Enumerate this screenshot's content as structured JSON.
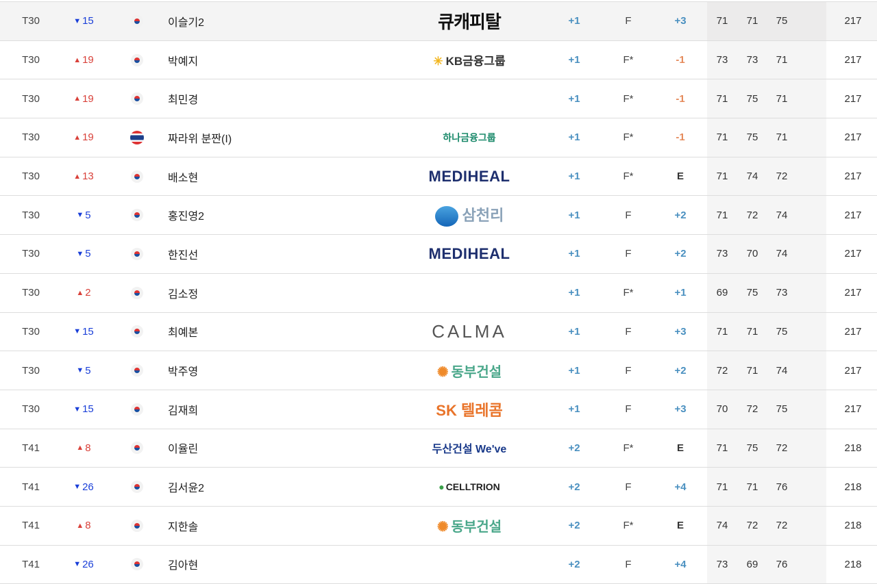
{
  "colors": {
    "up": "#d9413a",
    "down": "#1a3fd8",
    "over_par": "#4a90c0",
    "under_par": "#e58a5a"
  },
  "rows": [
    {
      "rank": "T30",
      "dir": "down",
      "move": "15",
      "flag": "korea-flag-icon",
      "name": "이슬기2",
      "sponsor": "큐캐피탈",
      "sponsor_key": "qc",
      "today": "+1",
      "thru": "F",
      "total": "+3",
      "r1": "71",
      "r2": "71",
      "r3": "75",
      "strokes": "217",
      "highlight": true
    },
    {
      "rank": "T30",
      "dir": "up",
      "move": "19",
      "flag": "korea-flag-icon",
      "name": "박예지",
      "sponsor": "KB금융그룹",
      "sponsor_key": "kb",
      "today": "+1",
      "thru": "F*",
      "total": "-1",
      "r1": "73",
      "r2": "73",
      "r3": "71",
      "strokes": "217"
    },
    {
      "rank": "T30",
      "dir": "up",
      "move": "19",
      "flag": "korea-flag-icon",
      "name": "최민경",
      "sponsor": "",
      "sponsor_key": "",
      "today": "+1",
      "thru": "F*",
      "total": "-1",
      "r1": "71",
      "r2": "75",
      "r3": "71",
      "strokes": "217"
    },
    {
      "rank": "T30",
      "dir": "up",
      "move": "19",
      "flag": "thailand-flag-icon",
      "name": "짜라위 분짠(I)",
      "sponsor": "하나금융그룹",
      "sponsor_key": "hana",
      "today": "+1",
      "thru": "F*",
      "total": "-1",
      "r1": "71",
      "r2": "75",
      "r3": "71",
      "strokes": "217"
    },
    {
      "rank": "T30",
      "dir": "up",
      "move": "13",
      "flag": "korea-flag-icon",
      "name": "배소현",
      "sponsor": "MEDIHEAL",
      "sponsor_key": "medi",
      "today": "+1",
      "thru": "F*",
      "total": "E",
      "r1": "71",
      "r2": "74",
      "r3": "72",
      "strokes": "217"
    },
    {
      "rank": "T30",
      "dir": "down",
      "move": "5",
      "flag": "korea-flag-icon",
      "name": "홍진영2",
      "sponsor": "삼천리",
      "sponsor_key": "sam",
      "today": "+1",
      "thru": "F",
      "total": "+2",
      "r1": "71",
      "r2": "72",
      "r3": "74",
      "strokes": "217"
    },
    {
      "rank": "T30",
      "dir": "down",
      "move": "5",
      "flag": "korea-flag-icon",
      "name": "한진선",
      "sponsor": "MEDIHEAL",
      "sponsor_key": "medi",
      "today": "+1",
      "thru": "F",
      "total": "+2",
      "r1": "73",
      "r2": "70",
      "r3": "74",
      "strokes": "217"
    },
    {
      "rank": "T30",
      "dir": "up",
      "move": "2",
      "flag": "korea-flag-icon",
      "name": "김소정",
      "sponsor": "",
      "sponsor_key": "",
      "today": "+1",
      "thru": "F*",
      "total": "+1",
      "r1": "69",
      "r2": "75",
      "r3": "73",
      "strokes": "217"
    },
    {
      "rank": "T30",
      "dir": "down",
      "move": "15",
      "flag": "korea-flag-icon",
      "name": "최예본",
      "sponsor": "CALMA",
      "sponsor_key": "calma",
      "today": "+1",
      "thru": "F",
      "total": "+3",
      "r1": "71",
      "r2": "71",
      "r3": "75",
      "strokes": "217"
    },
    {
      "rank": "T30",
      "dir": "down",
      "move": "5",
      "flag": "korea-flag-icon",
      "name": "박주영",
      "sponsor": "동부건설",
      "sponsor_key": "dongbu",
      "today": "+1",
      "thru": "F",
      "total": "+2",
      "r1": "72",
      "r2": "71",
      "r3": "74",
      "strokes": "217"
    },
    {
      "rank": "T30",
      "dir": "down",
      "move": "15",
      "flag": "korea-flag-icon",
      "name": "김재희",
      "sponsor": "SK 텔레콤",
      "sponsor_key": "sk",
      "today": "+1",
      "thru": "F",
      "total": "+3",
      "r1": "70",
      "r2": "72",
      "r3": "75",
      "strokes": "217"
    },
    {
      "rank": "T41",
      "dir": "up",
      "move": "8",
      "flag": "korea-flag-icon",
      "name": "이율린",
      "sponsor": "두산건설 We've",
      "sponsor_key": "doosan",
      "today": "+2",
      "thru": "F*",
      "total": "E",
      "r1": "71",
      "r2": "75",
      "r3": "72",
      "strokes": "218"
    },
    {
      "rank": "T41",
      "dir": "down",
      "move": "26",
      "flag": "korea-flag-icon",
      "name": "김서윤2",
      "sponsor": "CELLTRION",
      "sponsor_key": "cell",
      "today": "+2",
      "thru": "F",
      "total": "+4",
      "r1": "71",
      "r2": "71",
      "r3": "76",
      "strokes": "218"
    },
    {
      "rank": "T41",
      "dir": "up",
      "move": "8",
      "flag": "korea-flag-icon",
      "name": "지한솔",
      "sponsor": "동부건설",
      "sponsor_key": "dongbu",
      "today": "+2",
      "thru": "F*",
      "total": "E",
      "r1": "74",
      "r2": "72",
      "r3": "72",
      "strokes": "218"
    },
    {
      "rank": "T41",
      "dir": "down",
      "move": "26",
      "flag": "korea-flag-icon",
      "name": "김아현",
      "sponsor": "",
      "sponsor_key": "",
      "today": "+2",
      "thru": "F",
      "total": "+4",
      "r1": "73",
      "r2": "69",
      "r3": "76",
      "strokes": "218"
    }
  ]
}
